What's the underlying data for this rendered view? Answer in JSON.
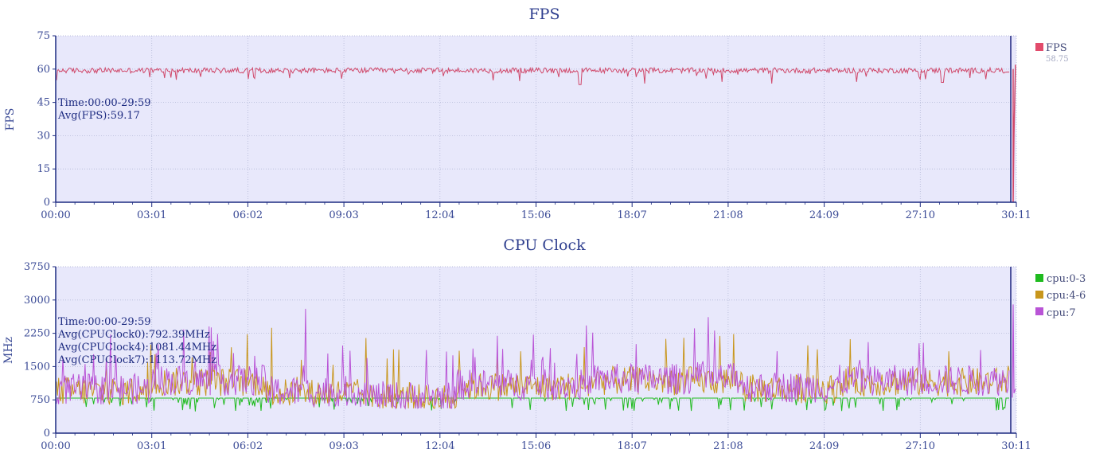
{
  "chart_data": [
    {
      "type": "line",
      "title": "FPS",
      "ylabel": "FPS",
      "xlabel": "",
      "ylim": [
        0,
        75
      ],
      "yticks": [
        "0",
        "15",
        "30",
        "45",
        "60",
        "75"
      ],
      "xticks": [
        "00:00",
        "03:01",
        "06:02",
        "09:03",
        "12:04",
        "15:06",
        "18:07",
        "21:08",
        "24:09",
        "27:10",
        "30:11"
      ],
      "grid": true,
      "legend_position": "right",
      "annotations": [
        "Time:00:00-29:59",
        "Avg(FPS):59.17"
      ],
      "series": [
        {
          "name": "FPS",
          "color": "#d0486a",
          "legend_value": "58.75",
          "mean": 59.17,
          "min": 52,
          "max": 61
        }
      ]
    },
    {
      "type": "line",
      "title": "CPU Clock",
      "ylabel": "MHz",
      "xlabel": "",
      "ylim": [
        0,
        3750
      ],
      "yticks": [
        "0",
        "750",
        "1500",
        "2250",
        "3000",
        "3750"
      ],
      "xticks": [
        "00:00",
        "03:01",
        "06:02",
        "09:03",
        "12:04",
        "15:06",
        "18:07",
        "21:08",
        "24:09",
        "27:10",
        "30:11"
      ],
      "grid": true,
      "legend_position": "right",
      "annotations": [
        "Time:00:00-29:59",
        "Avg(CPUClock0):792.39MHz",
        "Avg(CPUClock4):1081.44MHz",
        "Avg(CPUClock7):1113.72MHz"
      ],
      "series": [
        {
          "name": "cpu:0-3",
          "color": "#1fbb1f",
          "mean": 792.39
        },
        {
          "name": "cpu:4-6",
          "color": "#c8961c",
          "mean": 1081.44
        },
        {
          "name": "cpu:7",
          "color": "#b954d6",
          "mean": 1113.72
        }
      ]
    }
  ],
  "styles": {
    "plot_bg": "#e8e8fb",
    "axis_color": "#1c2a80",
    "grid_color": "#b3b7d6",
    "text_color": "#3a4a96"
  }
}
